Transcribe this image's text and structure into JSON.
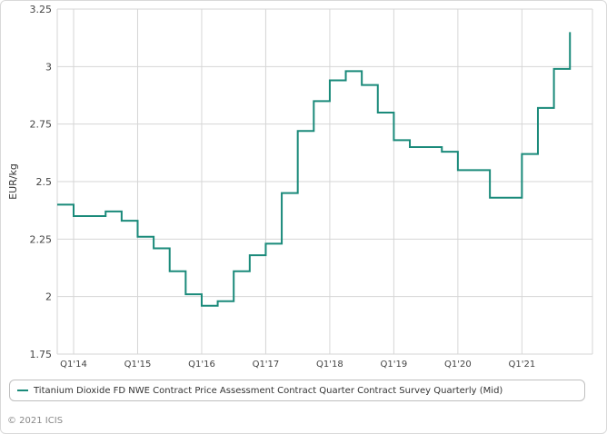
{
  "chart_data": {
    "type": "line",
    "step": true,
    "ylabel": "EUR/kg",
    "xlabel": "",
    "title": "",
    "ylim": [
      1.75,
      3.25
    ],
    "yticks": [
      1.75,
      2,
      2.25,
      2.5,
      2.75,
      3,
      3.25
    ],
    "xticks": [
      "Q1'14",
      "Q1'15",
      "Q1'16",
      "Q1'17",
      "Q1'18",
      "Q1'19",
      "Q1'20",
      "Q1'21"
    ],
    "grid": true,
    "legend_position": "bottom",
    "series": [
      {
        "name": "Titanium Dioxide FD NWE Contract Price Assessment Contract Quarter Contract Survey Quarterly (Mid)",
        "color": "#1a8a7a",
        "x": [
          "Q4'13",
          "Q1'14",
          "Q2'14",
          "Q3'14",
          "Q4'14",
          "Q1'15",
          "Q2'15",
          "Q3'15",
          "Q4'15",
          "Q1'16",
          "Q2'16",
          "Q3'16",
          "Q4'16",
          "Q1'17",
          "Q2'17",
          "Q3'17",
          "Q4'17",
          "Q1'18",
          "Q2'18",
          "Q3'18",
          "Q4'18",
          "Q1'19",
          "Q2'19",
          "Q3'19",
          "Q4'19",
          "Q1'20",
          "Q2'20",
          "Q3'20",
          "Q4'20",
          "Q1'21",
          "Q2'21",
          "Q3'21",
          "Q4'21"
        ],
        "values": [
          2.4,
          2.35,
          2.35,
          2.37,
          2.33,
          2.26,
          2.21,
          2.11,
          2.01,
          1.96,
          1.98,
          2.11,
          2.18,
          2.23,
          2.45,
          2.72,
          2.85,
          2.94,
          2.98,
          2.92,
          2.8,
          2.68,
          2.65,
          2.65,
          2.63,
          2.55,
          2.55,
          2.43,
          2.43,
          2.62,
          2.82,
          2.99,
          3.15
        ]
      }
    ]
  },
  "copyright": "© 2021 ICIS"
}
